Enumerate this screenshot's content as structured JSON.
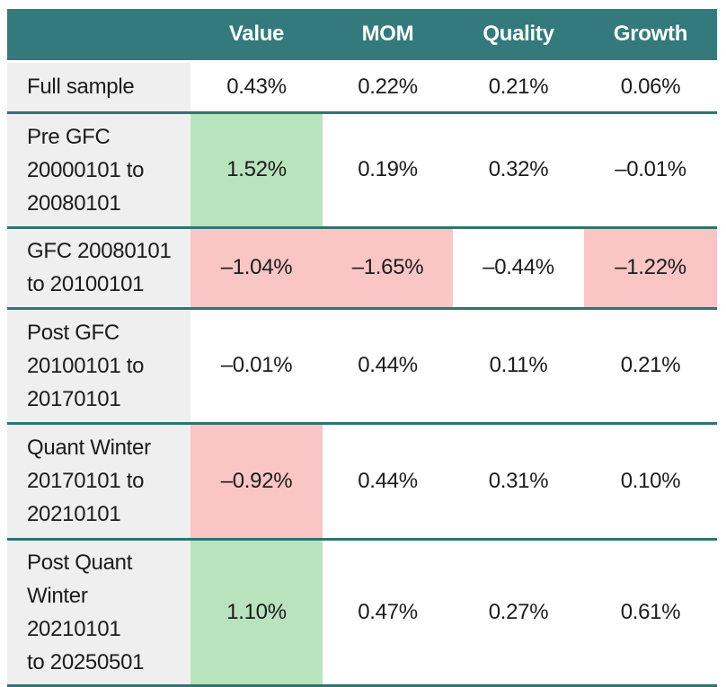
{
  "chart_data": {
    "type": "table",
    "title": "",
    "columns": [
      "",
      "Value",
      "MOM",
      "Quality",
      "Growth"
    ],
    "rows": [
      {
        "label": "Full sample",
        "values": [
          "0.43%",
          "0.22%",
          "0.21%",
          "0.06%"
        ],
        "highlights": [
          "none",
          "none",
          "none",
          "none"
        ]
      },
      {
        "label": "Pre GFC\n20000101 to\n20080101",
        "values": [
          "1.52%",
          "0.19%",
          "0.32%",
          "–0.01%"
        ],
        "highlights": [
          "green",
          "none",
          "none",
          "none"
        ]
      },
      {
        "label": "GFC 20080101\nto 20100101",
        "values": [
          "–1.04%",
          "–1.65%",
          "–0.44%",
          "–1.22%"
        ],
        "highlights": [
          "red",
          "red",
          "none",
          "red"
        ]
      },
      {
        "label": "Post GFC\n20100101 to\n20170101",
        "values": [
          "–0.01%",
          "0.44%",
          "0.11%",
          "0.21%"
        ],
        "highlights": [
          "none",
          "none",
          "none",
          "none"
        ]
      },
      {
        "label": "Quant Winter\n20170101 to\n20210101",
        "values": [
          "–0.92%",
          "0.44%",
          "0.31%",
          "0.10%"
        ],
        "highlights": [
          "red",
          "none",
          "none",
          "none"
        ]
      },
      {
        "label": "Post Quant\nWinter 20210101\nto 20250501",
        "values": [
          "1.10%",
          "0.47%",
          "0.27%",
          "0.61%"
        ],
        "highlights": [
          "green",
          "none",
          "none",
          "none"
        ]
      }
    ],
    "layout_hints": {
      "first_column_background": "#efeff0",
      "header_position": "top",
      "row_separators": true
    }
  },
  "colors": {
    "header_bg": "#347a7c",
    "separator": "#2f7470",
    "green": "#b9e3bc",
    "red": "#f9c5c5",
    "label_bg": "#efeff0",
    "header_text": "#ffffff",
    "body_text": "#1b1b1b",
    "none": ""
  }
}
